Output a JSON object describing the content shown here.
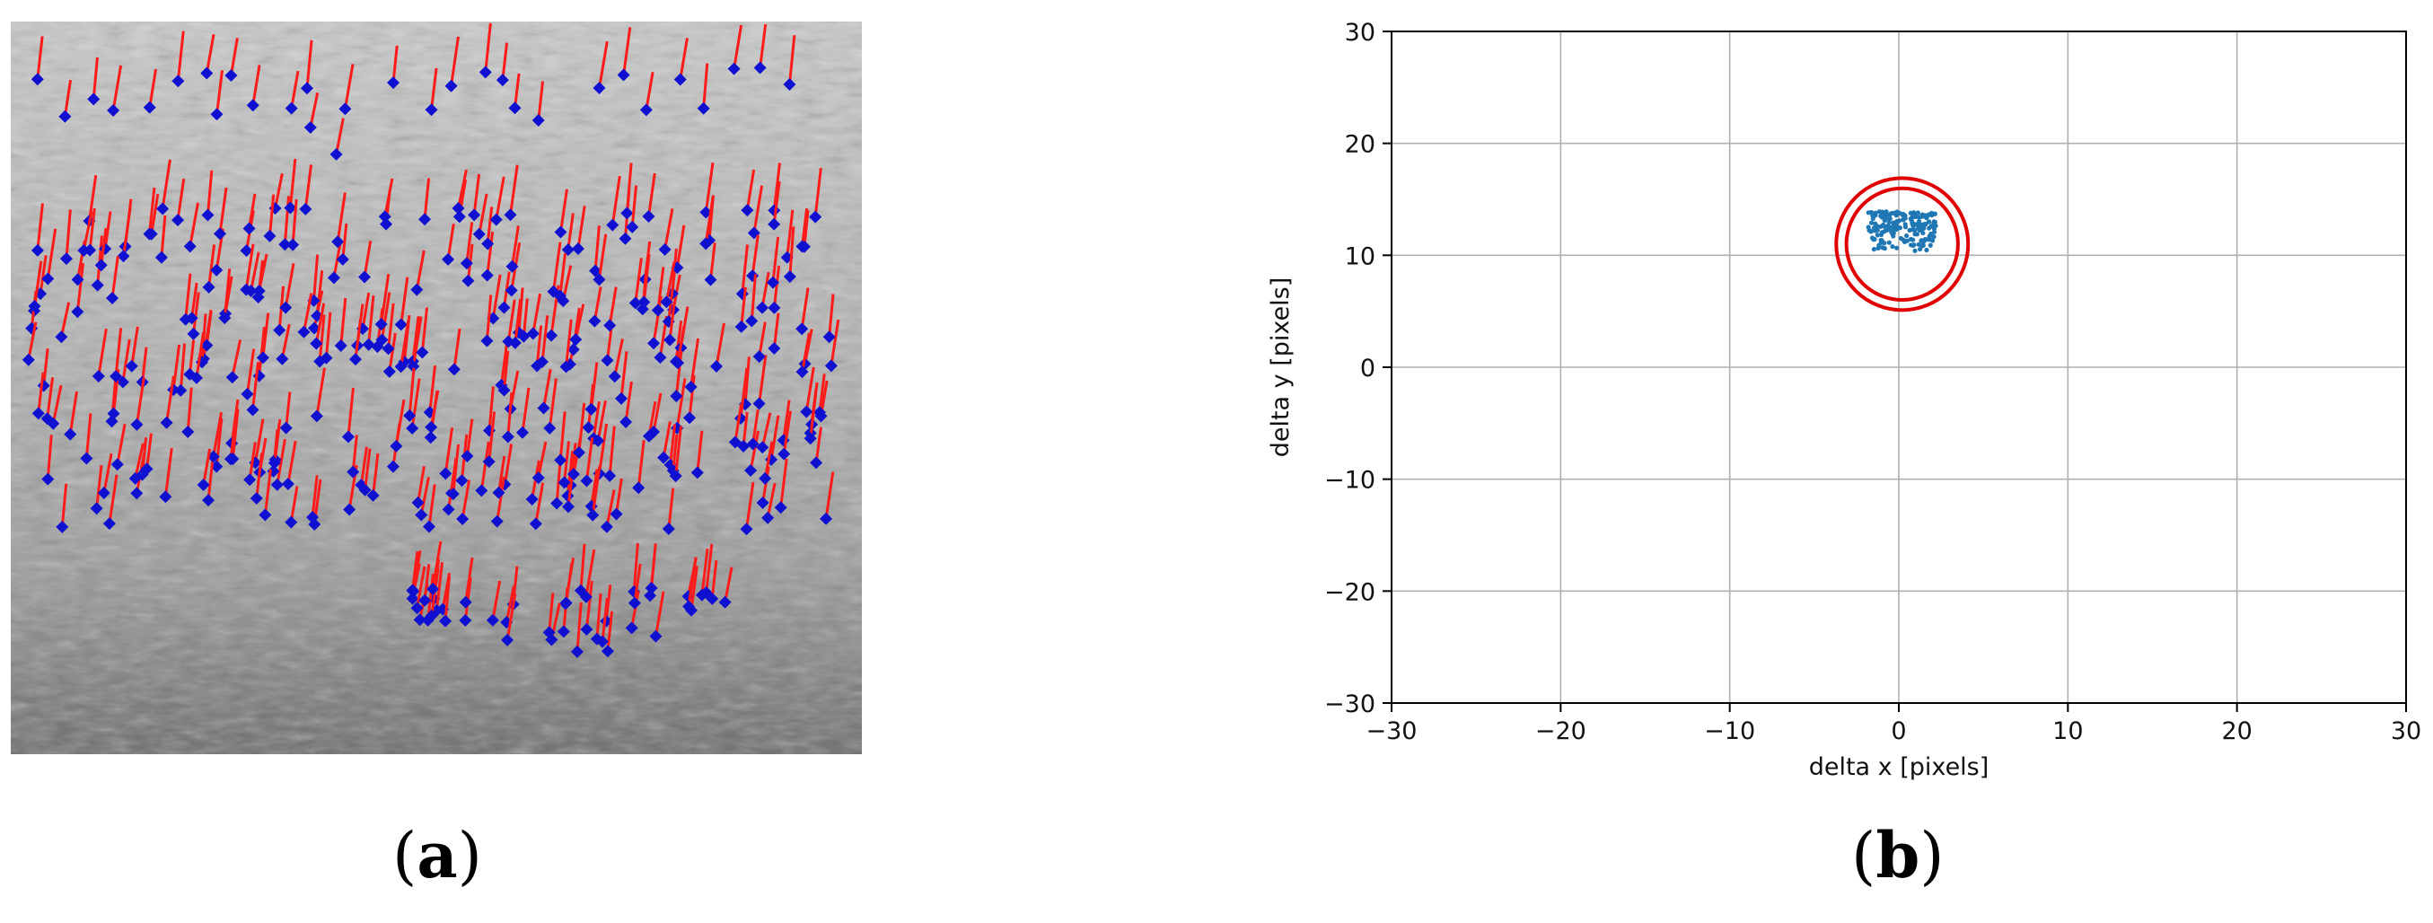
{
  "captions": {
    "a_open": "(",
    "a_letter": "a",
    "a_close": ")",
    "b_open": "(",
    "b_letter": "b",
    "b_close": ")"
  },
  "colors": {
    "vector": "#ff1a1a",
    "marker": "#1010d0",
    "scatter": "#1f77b4",
    "circle": "#e00000",
    "grid": "#b0b0b0"
  },
  "chart_data": [
    {
      "type": "image",
      "panel": "a",
      "description_visible": "grayscale image with tracked feature points (blue diamonds) and red displacement vectors"
    },
    {
      "type": "scatter",
      "panel": "b",
      "title": "",
      "xlabel": "delta x [pixels]",
      "ylabel": "delta y [pixels]",
      "xlim": [
        -30,
        30
      ],
      "ylim": [
        -30,
        30
      ],
      "xticks": [
        -30,
        -20,
        -10,
        0,
        10,
        20,
        30
      ],
      "yticks": [
        -30,
        -20,
        -10,
        0,
        10,
        20,
        30
      ],
      "xtick_labels": [
        "−30",
        "−20",
        "−10",
        "0",
        "10",
        "20",
        "30"
      ],
      "ytick_labels": [
        "−30",
        "−20",
        "−10",
        "0",
        "10",
        "20",
        "30"
      ],
      "grid": true,
      "cluster": {
        "center": [
          0.2,
          12.3
        ],
        "x_range": [
          -1.8,
          2.2
        ],
        "y_range": [
          10.2,
          13.9
        ],
        "count": 180
      },
      "circles": [
        {
          "center": [
            0.2,
            11.0
          ],
          "radius": 3.9
        },
        {
          "center": [
            0.2,
            11.0
          ],
          "radius": 3.3
        }
      ]
    }
  ]
}
